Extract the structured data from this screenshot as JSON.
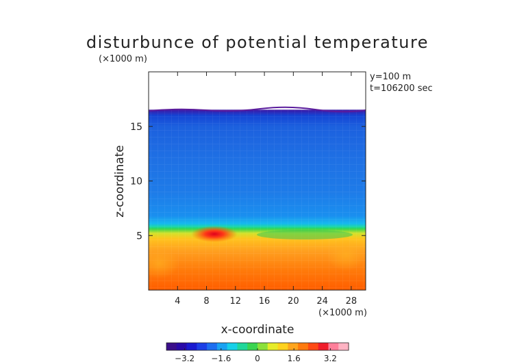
{
  "chart_data": {
    "type": "heatmap",
    "title": "disturbunce of potential temperature",
    "scale_note": "(×1000 m)",
    "annotations": [
      "y=100 m",
      "t=106200 sec"
    ],
    "xlabel": "x-coordinate",
    "ylabel": "z-coordinate",
    "x_unit_label": "(×1000 m)",
    "xlim": [
      0,
      30
    ],
    "ylim": [
      0,
      20
    ],
    "x_ticks": [
      4,
      8,
      12,
      16,
      20,
      24,
      28
    ],
    "y_ticks": [
      5,
      10,
      15
    ],
    "colorbar": {
      "range": [
        -4.0,
        4.0
      ],
      "ticks": [
        -3.2,
        -1.6,
        0,
        1.6,
        3.2
      ],
      "tick_labels": [
        "−3.2",
        "−1.6",
        "0",
        "1.6",
        "3.2"
      ],
      "colormap": "rainbow (purple → blue → cyan → green → yellow → orange → red → pink)"
    },
    "field_summary": {
      "no_data_above_z": 16.6,
      "upper_region_z_range": [
        7,
        16.5
      ],
      "upper_region_value": -2.0,
      "transition_z": 6.0,
      "lower_region_value": 2.3,
      "near_surface_value": 2.7,
      "warm_anomaly": {
        "x": 9,
        "z": 5.2,
        "value": 3.8
      }
    }
  }
}
